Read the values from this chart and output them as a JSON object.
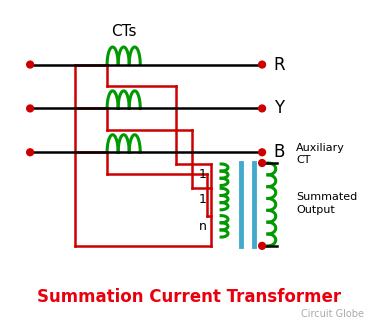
{
  "title": "Summation Current Transformer",
  "subtitle": "Circuit Globe",
  "title_color": "#e8000d",
  "subtitle_color": "#aaaaaa",
  "bg_color": "#ffffff",
  "black": "#000000",
  "red": "#cc0000",
  "green": "#009900",
  "blue": "#44aacc",
  "node_color": "#cc0000",
  "ct_label": "CTs",
  "phase_labels": [
    "R",
    "Y",
    "B"
  ],
  "aux_label": [
    "Auxiliary",
    "CT"
  ],
  "winding_labels": [
    "1",
    "1",
    "n"
  ],
  "output_label": [
    "Summated",
    "Output"
  ]
}
